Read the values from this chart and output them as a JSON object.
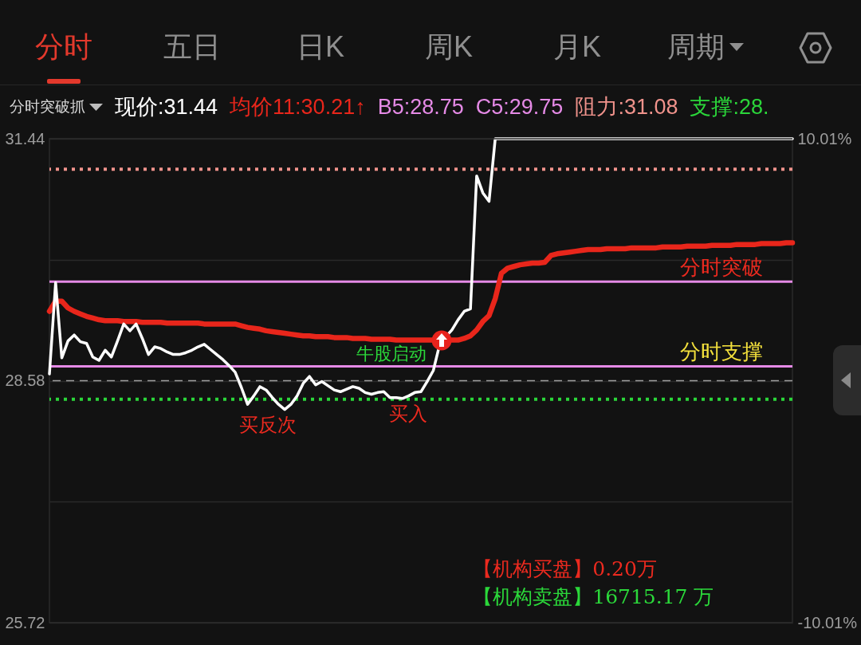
{
  "chart_data": {
    "type": "line",
    "legend_title": "分时突破抓",
    "legend": "top",
    "grid": "y",
    "categories": [
      null,
      null,
      null,
      null,
      null,
      null,
      null,
      null,
      null,
      null,
      null,
      null,
      null,
      null,
      null,
      null,
      null,
      null,
      null,
      null,
      null,
      null,
      null,
      null,
      null,
      null,
      null,
      null,
      null,
      null,
      null,
      null,
      null,
      null,
      null,
      null,
      null,
      null,
      null,
      null,
      null,
      null,
      null,
      null,
      null,
      null,
      null,
      null,
      null,
      null,
      null,
      null,
      null,
      null,
      null,
      null,
      null,
      null,
      null,
      null,
      null,
      null,
      null,
      null,
      null,
      null,
      null,
      null,
      null,
      null,
      null,
      null,
      null,
      null,
      null,
      null,
      null,
      null,
      null,
      null,
      null,
      null,
      null,
      null,
      null,
      null,
      null,
      null,
      null,
      null,
      null,
      null,
      null,
      null,
      null,
      null,
      null,
      null,
      null,
      null,
      null,
      null,
      null,
      null,
      null,
      null,
      null,
      null,
      null,
      null,
      null,
      null,
      null,
      null,
      null,
      null,
      null,
      null,
      null,
      null,
      null
    ],
    "series": [
      {
        "name": "现价:31.44",
        "color": "#ffffff",
        "values": [
          28.66,
          29.74,
          28.85,
          29.05,
          29.12,
          29.04,
          29.02,
          28.86,
          28.82,
          28.94,
          28.86,
          29.05,
          29.25,
          29.17,
          29.25,
          29.08,
          28.89,
          28.98,
          28.96,
          28.92,
          28.89,
          28.89,
          28.91,
          28.94,
          28.98,
          29.01,
          28.95,
          28.89,
          28.83,
          28.76,
          28.68,
          28.5,
          28.3,
          28.4,
          28.51,
          28.47,
          28.38,
          28.3,
          28.24,
          28.3,
          28.4,
          28.55,
          28.63,
          28.53,
          28.57,
          28.52,
          28.47,
          28.45,
          28.48,
          28.51,
          28.49,
          28.44,
          28.42,
          28.44,
          28.45,
          28.38,
          28.38,
          28.37,
          28.4,
          28.44,
          28.45,
          28.57,
          28.7,
          29.0,
          29.1,
          29.18,
          29.3,
          29.4,
          29.43,
          31.0,
          30.8,
          30.7,
          31.44,
          31.44,
          31.44,
          31.44,
          31.44,
          31.44,
          31.44,
          31.44,
          31.44,
          31.44,
          31.44,
          31.44,
          31.44,
          31.44,
          31.44,
          31.44,
          31.44,
          31.44,
          31.44,
          31.44,
          31.44,
          31.44,
          31.44,
          31.44,
          31.44,
          31.44,
          31.44,
          31.44,
          31.44,
          31.44,
          31.44,
          31.44,
          31.44,
          31.44,
          31.44,
          31.44,
          31.44,
          31.44,
          31.44,
          31.44,
          31.44,
          31.44,
          31.44,
          31.44,
          31.44,
          31.44,
          31.44,
          31.44,
          31.44
        ]
      },
      {
        "name": "均价11:30.21↑",
        "color": "#e8261b",
        "values": [
          29.4,
          29.52,
          29.52,
          29.44,
          29.4,
          29.37,
          29.34,
          29.32,
          29.3,
          29.29,
          29.29,
          29.29,
          29.28,
          29.28,
          29.28,
          29.27,
          29.27,
          29.27,
          29.27,
          29.26,
          29.26,
          29.26,
          29.26,
          29.26,
          29.26,
          29.25,
          29.25,
          29.25,
          29.25,
          29.25,
          29.25,
          29.23,
          29.21,
          29.2,
          29.19,
          29.17,
          29.16,
          29.15,
          29.14,
          29.13,
          29.12,
          29.11,
          29.11,
          29.1,
          29.1,
          29.1,
          29.09,
          29.09,
          29.09,
          29.08,
          29.08,
          29.08,
          29.07,
          29.07,
          29.07,
          29.07,
          29.06,
          29.06,
          29.06,
          29.06,
          29.06,
          29.06,
          29.06,
          29.06,
          29.06,
          29.06,
          29.06,
          29.08,
          29.11,
          29.18,
          29.28,
          29.35,
          29.55,
          29.85,
          29.91,
          29.93,
          29.95,
          29.96,
          29.97,
          29.97,
          29.98,
          30.06,
          30.08,
          30.09,
          30.1,
          30.11,
          30.12,
          30.13,
          30.13,
          30.13,
          30.14,
          30.14,
          30.14,
          30.14,
          30.15,
          30.15,
          30.15,
          30.15,
          30.15,
          30.16,
          30.16,
          30.16,
          30.16,
          30.17,
          30.17,
          30.17,
          30.17,
          30.18,
          30.18,
          30.18,
          30.18,
          30.19,
          30.19,
          30.19,
          30.19,
          30.2,
          30.2,
          30.2,
          30.2,
          30.21,
          30.21
        ]
      }
    ],
    "ylim": [
      25.72,
      31.44
    ],
    "yticks": [
      31.44,
      {
        "value": 30.01,
        "label": null
      },
      28.58,
      {
        "value": 27.15,
        "label": null
      },
      25.72
    ],
    "y2lim": [
      -10.01,
      10.01
    ],
    "y2ticks": [
      {
        "value": 10.01,
        "label": "10.01%"
      },
      {
        "value": -10.01,
        "label": "-10.01%"
      }
    ],
    "ref_lines": [
      {
        "axis": "y",
        "value": 28.75,
        "label": "B5:28.75",
        "color": "#e58ae6"
      },
      {
        "axis": "y",
        "value": 29.75,
        "label": "C5:29.75",
        "color": "#e58ae6"
      },
      {
        "axis": "y",
        "value": 31.08,
        "label": "阻力:31.08",
        "color": "#f1938c",
        "line_style": "dotted"
      },
      {
        "axis": "y",
        "value": 28.36,
        "label": "支撑:28.",
        "color": "#2bd63a",
        "line_style": "dotted"
      },
      {
        "axis": "y",
        "value": 28.58,
        "label": null,
        "color": "#a0a0a0",
        "line_style": "dashed"
      }
    ],
    "annotations": [
      "分时",
      "五日",
      "日K",
      "周K",
      "月K",
      "周期",
      {
        "text": "分时突破",
        "y": 29.75
      },
      {
        "text": "分时支撑",
        "y": 28.75
      },
      "牛股启动",
      "买反次",
      "买入",
      "【机构买盘】0.20万",
      "【机构卖盘】16715.17 万"
    ]
  }
}
